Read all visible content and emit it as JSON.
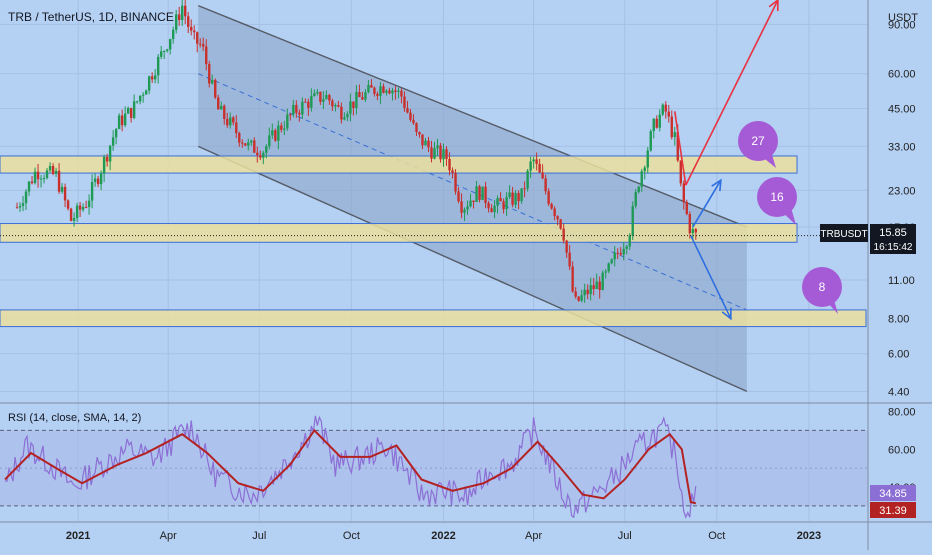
{
  "header": {
    "symbol_title": "TRB / TetherUS, 1D, BINANCE"
  },
  "price_axis": {
    "unit": "USDT",
    "ticks": [
      "90.00",
      "60.00",
      "45.00",
      "33.00",
      "23.00",
      "17.00",
      "11.00",
      "8.00",
      "6.00",
      "4.40"
    ],
    "last_price_label": "TRBUSDT",
    "last_price": "15.85",
    "countdown": "16:15:42"
  },
  "rsi_panel": {
    "title": "RSI (14, close, SMA, 14, 2)",
    "ticks": [
      "80.00",
      "60.00",
      "40.00"
    ],
    "rsi_value": "34.85",
    "rsi_sma_value": "31.39"
  },
  "time_axis": {
    "ticks": [
      "2021",
      "Apr",
      "Jul",
      "Oct",
      "2022",
      "Apr",
      "Jul",
      "Oct",
      "2023"
    ]
  },
  "annotations": {
    "bubble_27": "27",
    "bubble_16": "16",
    "bubble_8": "8"
  },
  "colors": {
    "background": "#b4d0f3",
    "channel_fill": "#8ba3c6",
    "zone_fill": "#eadf9c",
    "candle_up": "#1f9a55",
    "candle_down": "#c9302c",
    "rsi_line": "#8b6fd4",
    "rsi_sma": "#b32222",
    "arrow_red": "#e8323f",
    "arrow_blue": "#2f6ee0",
    "bubble": "#a55bd6"
  },
  "chart_data": [
    {
      "type": "candlestick",
      "title": "TRB / TetherUS, 1D, BINANCE",
      "y_scale": "log",
      "ylim": [
        4.0,
        110.0
      ],
      "x_range": [
        "2020-10-15",
        "2023-03-01"
      ],
      "series": [
        {
          "points": [
            [
              "2020-11-01",
              20
            ],
            [
              "2020-11-20",
              27
            ],
            [
              "2020-12-10",
              26
            ],
            [
              "2020-12-25",
              18
            ],
            [
              "2021-01-10",
              21
            ],
            [
              "2021-01-25",
              28
            ],
            [
              "2021-02-10",
              40
            ],
            [
              "2021-02-25",
              45
            ],
            [
              "2021-03-10",
              55
            ],
            [
              "2021-03-25",
              70
            ],
            [
              "2021-04-05",
              85
            ],
            [
              "2021-04-15",
              105
            ],
            [
              "2021-04-25",
              80
            ],
            [
              "2021-05-05",
              75
            ],
            [
              "2021-05-20",
              45
            ],
            [
              "2021-06-01",
              40
            ],
            [
              "2021-06-20",
              33
            ],
            [
              "2021-07-05",
              32
            ],
            [
              "2021-07-20",
              38
            ],
            [
              "2021-08-05",
              44
            ],
            [
              "2021-08-20",
              48
            ],
            [
              "2021-09-05",
              50
            ],
            [
              "2021-09-20",
              44
            ],
            [
              "2021-10-05",
              48
            ],
            [
              "2021-10-20",
              52
            ],
            [
              "2021-11-05",
              55
            ],
            [
              "2021-11-20",
              50
            ],
            [
              "2021-12-05",
              36
            ],
            [
              "2021-12-20",
              32
            ],
            [
              "2022-01-05",
              30
            ],
            [
              "2022-01-20",
              20
            ],
            [
              "2022-02-05",
              23
            ],
            [
              "2022-02-20",
              20
            ],
            [
              "2022-03-05",
              21
            ],
            [
              "2022-03-20",
              22
            ],
            [
              "2022-03-31",
              30
            ],
            [
              "2022-04-15",
              22
            ],
            [
              "2022-04-30",
              17
            ],
            [
              "2022-05-12",
              9
            ],
            [
              "2022-05-25",
              10
            ],
            [
              "2022-06-10",
              11
            ],
            [
              "2022-06-25",
              14
            ],
            [
              "2022-07-05",
              16
            ],
            [
              "2022-07-15",
              25
            ],
            [
              "2022-07-31",
              40
            ],
            [
              "2022-08-10",
              45
            ],
            [
              "2022-08-20",
              35
            ],
            [
              "2022-08-27",
              22
            ],
            [
              "2022-09-05",
              16.5
            ],
            [
              "2022-09-10",
              15.85
            ]
          ]
        }
      ],
      "horizontal_zones": [
        {
          "low": 26.5,
          "high": 30.5
        },
        {
          "low": 15.0,
          "high": 17.5
        },
        {
          "low": 7.5,
          "high": 8.6
        }
      ],
      "descending_channel": {
        "start": "2021-05-01",
        "end": "2022-10-31",
        "upper": [
          105,
          17
        ],
        "lower": [
          33,
          4.4
        ],
        "median": [
          60,
          8.6
        ]
      },
      "projections": {
        "red": [
          [
            "2022-08-31",
            24
          ],
          [
            "2022-12-01",
            110
          ]
        ],
        "blue_up": [
          [
            "2022-09-07",
            17
          ],
          [
            "2022-10-05",
            25
          ]
        ],
        "blue_down": [
          [
            "2022-09-05",
            15.85
          ],
          [
            "2022-10-15",
            8
          ]
        ]
      }
    },
    {
      "type": "line",
      "title": "RSI (14, close, SMA, 14, 2)",
      "ylim": [
        22,
        84
      ],
      "bands": [
        30,
        70
      ],
      "series": [
        {
          "name": "RSI",
          "points": [
            [
              "2020-10-20",
              40
            ],
            [
              "2020-11-10",
              62
            ],
            [
              "2020-12-05",
              52
            ],
            [
              "2020-12-28",
              40
            ],
            [
              "2021-01-20",
              50
            ],
            [
              "2021-02-20",
              60
            ],
            [
              "2021-03-20",
              55
            ],
            [
              "2021-04-12",
              68
            ],
            [
              "2021-04-25",
              72
            ],
            [
              "2021-05-15",
              48
            ],
            [
              "2021-06-05",
              40
            ],
            [
              "2021-06-25",
              36
            ],
            [
              "2021-07-20",
              48
            ],
            [
              "2021-08-15",
              65
            ],
            [
              "2021-08-28",
              75
            ],
            [
              "2021-09-15",
              52
            ],
            [
              "2021-10-10",
              55
            ],
            [
              "2021-11-05",
              62
            ],
            [
              "2021-11-20",
              52
            ],
            [
              "2021-12-10",
              36
            ],
            [
              "2022-01-05",
              38
            ],
            [
              "2022-01-25",
              34
            ],
            [
              "2022-02-15",
              48
            ],
            [
              "2022-03-10",
              52
            ],
            [
              "2022-04-01",
              70
            ],
            [
              "2022-04-15",
              55
            ],
            [
              "2022-05-01",
              35
            ],
            [
              "2022-05-12",
              28
            ],
            [
              "2022-06-01",
              36
            ],
            [
              "2022-06-20",
              45
            ],
            [
              "2022-07-10",
              58
            ],
            [
              "2022-07-25",
              66
            ],
            [
              "2022-08-10",
              70
            ],
            [
              "2022-08-22",
              55
            ],
            [
              "2022-08-30",
              26
            ],
            [
              "2022-09-05",
              30
            ],
            [
              "2022-09-10",
              34.85
            ]
          ]
        },
        {
          "name": "RSI-based MA",
          "points": [
            [
              "2020-10-20",
              44
            ],
            [
              "2020-11-15",
              58
            ],
            [
              "2020-12-10",
              50
            ],
            [
              "2021-01-05",
              42
            ],
            [
              "2021-02-10",
              52
            ],
            [
              "2021-03-10",
              58
            ],
            [
              "2021-04-15",
              68
            ],
            [
              "2021-05-10",
              58
            ],
            [
              "2021-06-10",
              42
            ],
            [
              "2021-07-05",
              38
            ],
            [
              "2021-08-01",
              52
            ],
            [
              "2021-08-25",
              70
            ],
            [
              "2021-09-20",
              56
            ],
            [
              "2021-10-20",
              56
            ],
            [
              "2021-11-15",
              62
            ],
            [
              "2021-12-10",
              44
            ],
            [
              "2022-01-10",
              38
            ],
            [
              "2022-02-10",
              42
            ],
            [
              "2022-03-10",
              50
            ],
            [
              "2022-04-05",
              64
            ],
            [
              "2022-04-25",
              52
            ],
            [
              "2022-05-20",
              36
            ],
            [
              "2022-06-10",
              34
            ],
            [
              "2022-07-01",
              44
            ],
            [
              "2022-07-25",
              60
            ],
            [
              "2022-08-15",
              68
            ],
            [
              "2022-08-27",
              60
            ],
            [
              "2022-09-05",
              32
            ],
            [
              "2022-09-10",
              31.39
            ]
          ]
        }
      ]
    }
  ]
}
